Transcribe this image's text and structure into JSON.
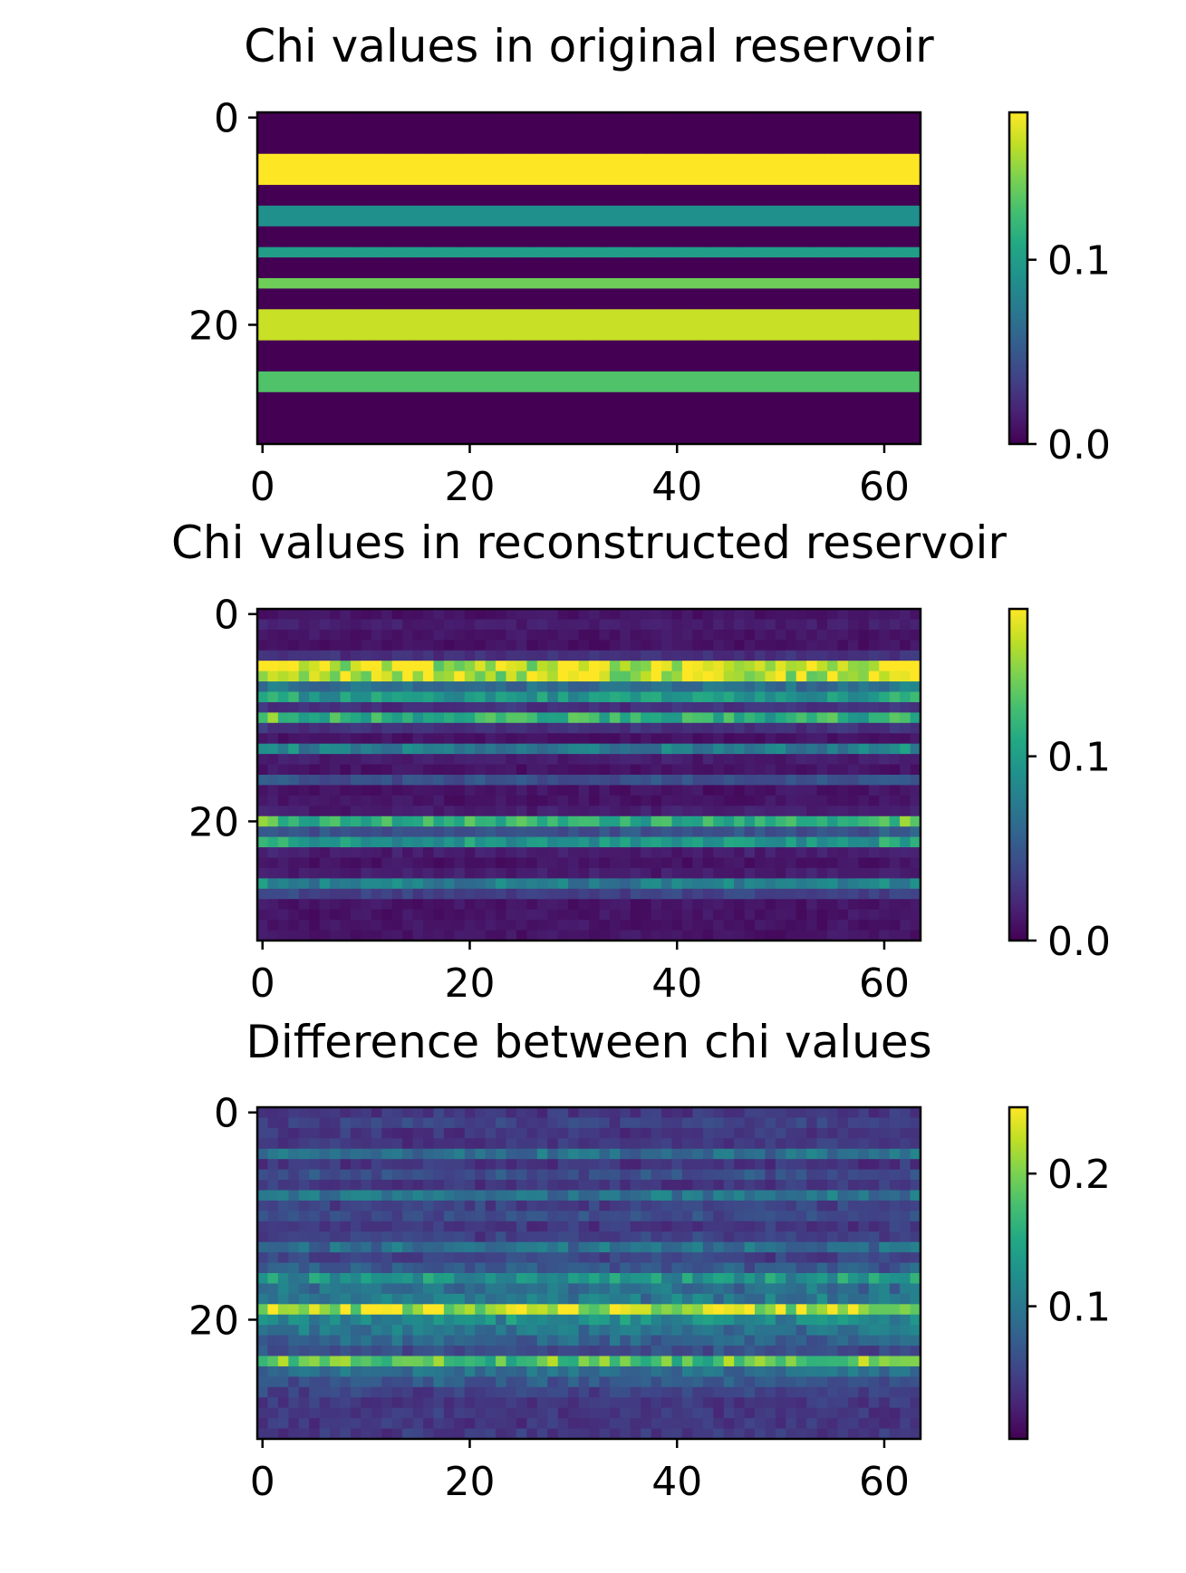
{
  "chart_data": [
    {
      "type": "heatmap",
      "title": "Chi values in original reservoir",
      "xlabel": "",
      "ylabel": "",
      "grid": false,
      "colormap": "viridis",
      "nx": 64,
      "ny": 32,
      "xticks": [
        0,
        20,
        40,
        60
      ],
      "yticks": [
        0,
        20
      ],
      "colorbar": {
        "min": 0.0,
        "max": 0.18,
        "ticks": [
          0.0,
          0.1
        ],
        "tick_labels": [
          "0.0",
          "0.1"
        ]
      },
      "row_values": [
        0,
        0,
        0,
        0,
        0.18,
        0.18,
        0.18,
        0,
        0,
        0.09,
        0.09,
        0,
        0,
        0.1,
        0,
        0,
        0.14,
        0,
        0,
        0.165,
        0.165,
        0.165,
        0,
        0,
        0,
        0.13,
        0.13,
        0,
        0,
        0,
        0,
        0
      ]
    },
    {
      "type": "heatmap",
      "title": "Chi values in reconstructed reservoir",
      "xlabel": "",
      "ylabel": "",
      "grid": false,
      "colormap": "viridis",
      "nx": 64,
      "ny": 32,
      "xticks": [
        0,
        20,
        40,
        60
      ],
      "yticks": [
        0,
        20
      ],
      "colorbar": {
        "min": 0.0,
        "max": 0.18,
        "ticks": [
          0.0,
          0.1
        ],
        "tick_labels": [
          "0.0",
          "0.1"
        ]
      },
      "row_values": [
        0.005,
        0.01,
        0.005,
        0.005,
        0.02,
        0.16,
        0.16,
        0.06,
        0.09,
        0.02,
        0.11,
        0.02,
        0.005,
        0.07,
        0.01,
        0.005,
        0.04,
        0.005,
        0.005,
        0.01,
        0.11,
        0.04,
        0.09,
        0.01,
        0.005,
        0.01,
        0.07,
        0.03,
        0.005,
        0.005,
        0.005,
        0.005
      ]
    },
    {
      "type": "heatmap",
      "title": "Difference between chi values",
      "xlabel": "",
      "ylabel": "",
      "grid": false,
      "colormap": "viridis",
      "nx": 64,
      "ny": 32,
      "xticks": [
        0,
        20,
        40,
        60
      ],
      "yticks": [
        0,
        20
      ],
      "colorbar": {
        "min": 0.0,
        "max": 0.25,
        "ticks": [
          0.1,
          0.2
        ],
        "tick_labels": [
          "0.1",
          "0.2"
        ]
      },
      "row_values": [
        0.03,
        0.04,
        0.03,
        0.03,
        0.08,
        0.03,
        0.05,
        0.03,
        0.09,
        0.04,
        0.05,
        0.03,
        0.04,
        0.08,
        0.04,
        0.06,
        0.12,
        0.08,
        0.09,
        0.22,
        0.11,
        0.09,
        0.07,
        0.05,
        0.18,
        0.08,
        0.06,
        0.04,
        0.03,
        0.03,
        0.03,
        0.03
      ]
    }
  ]
}
